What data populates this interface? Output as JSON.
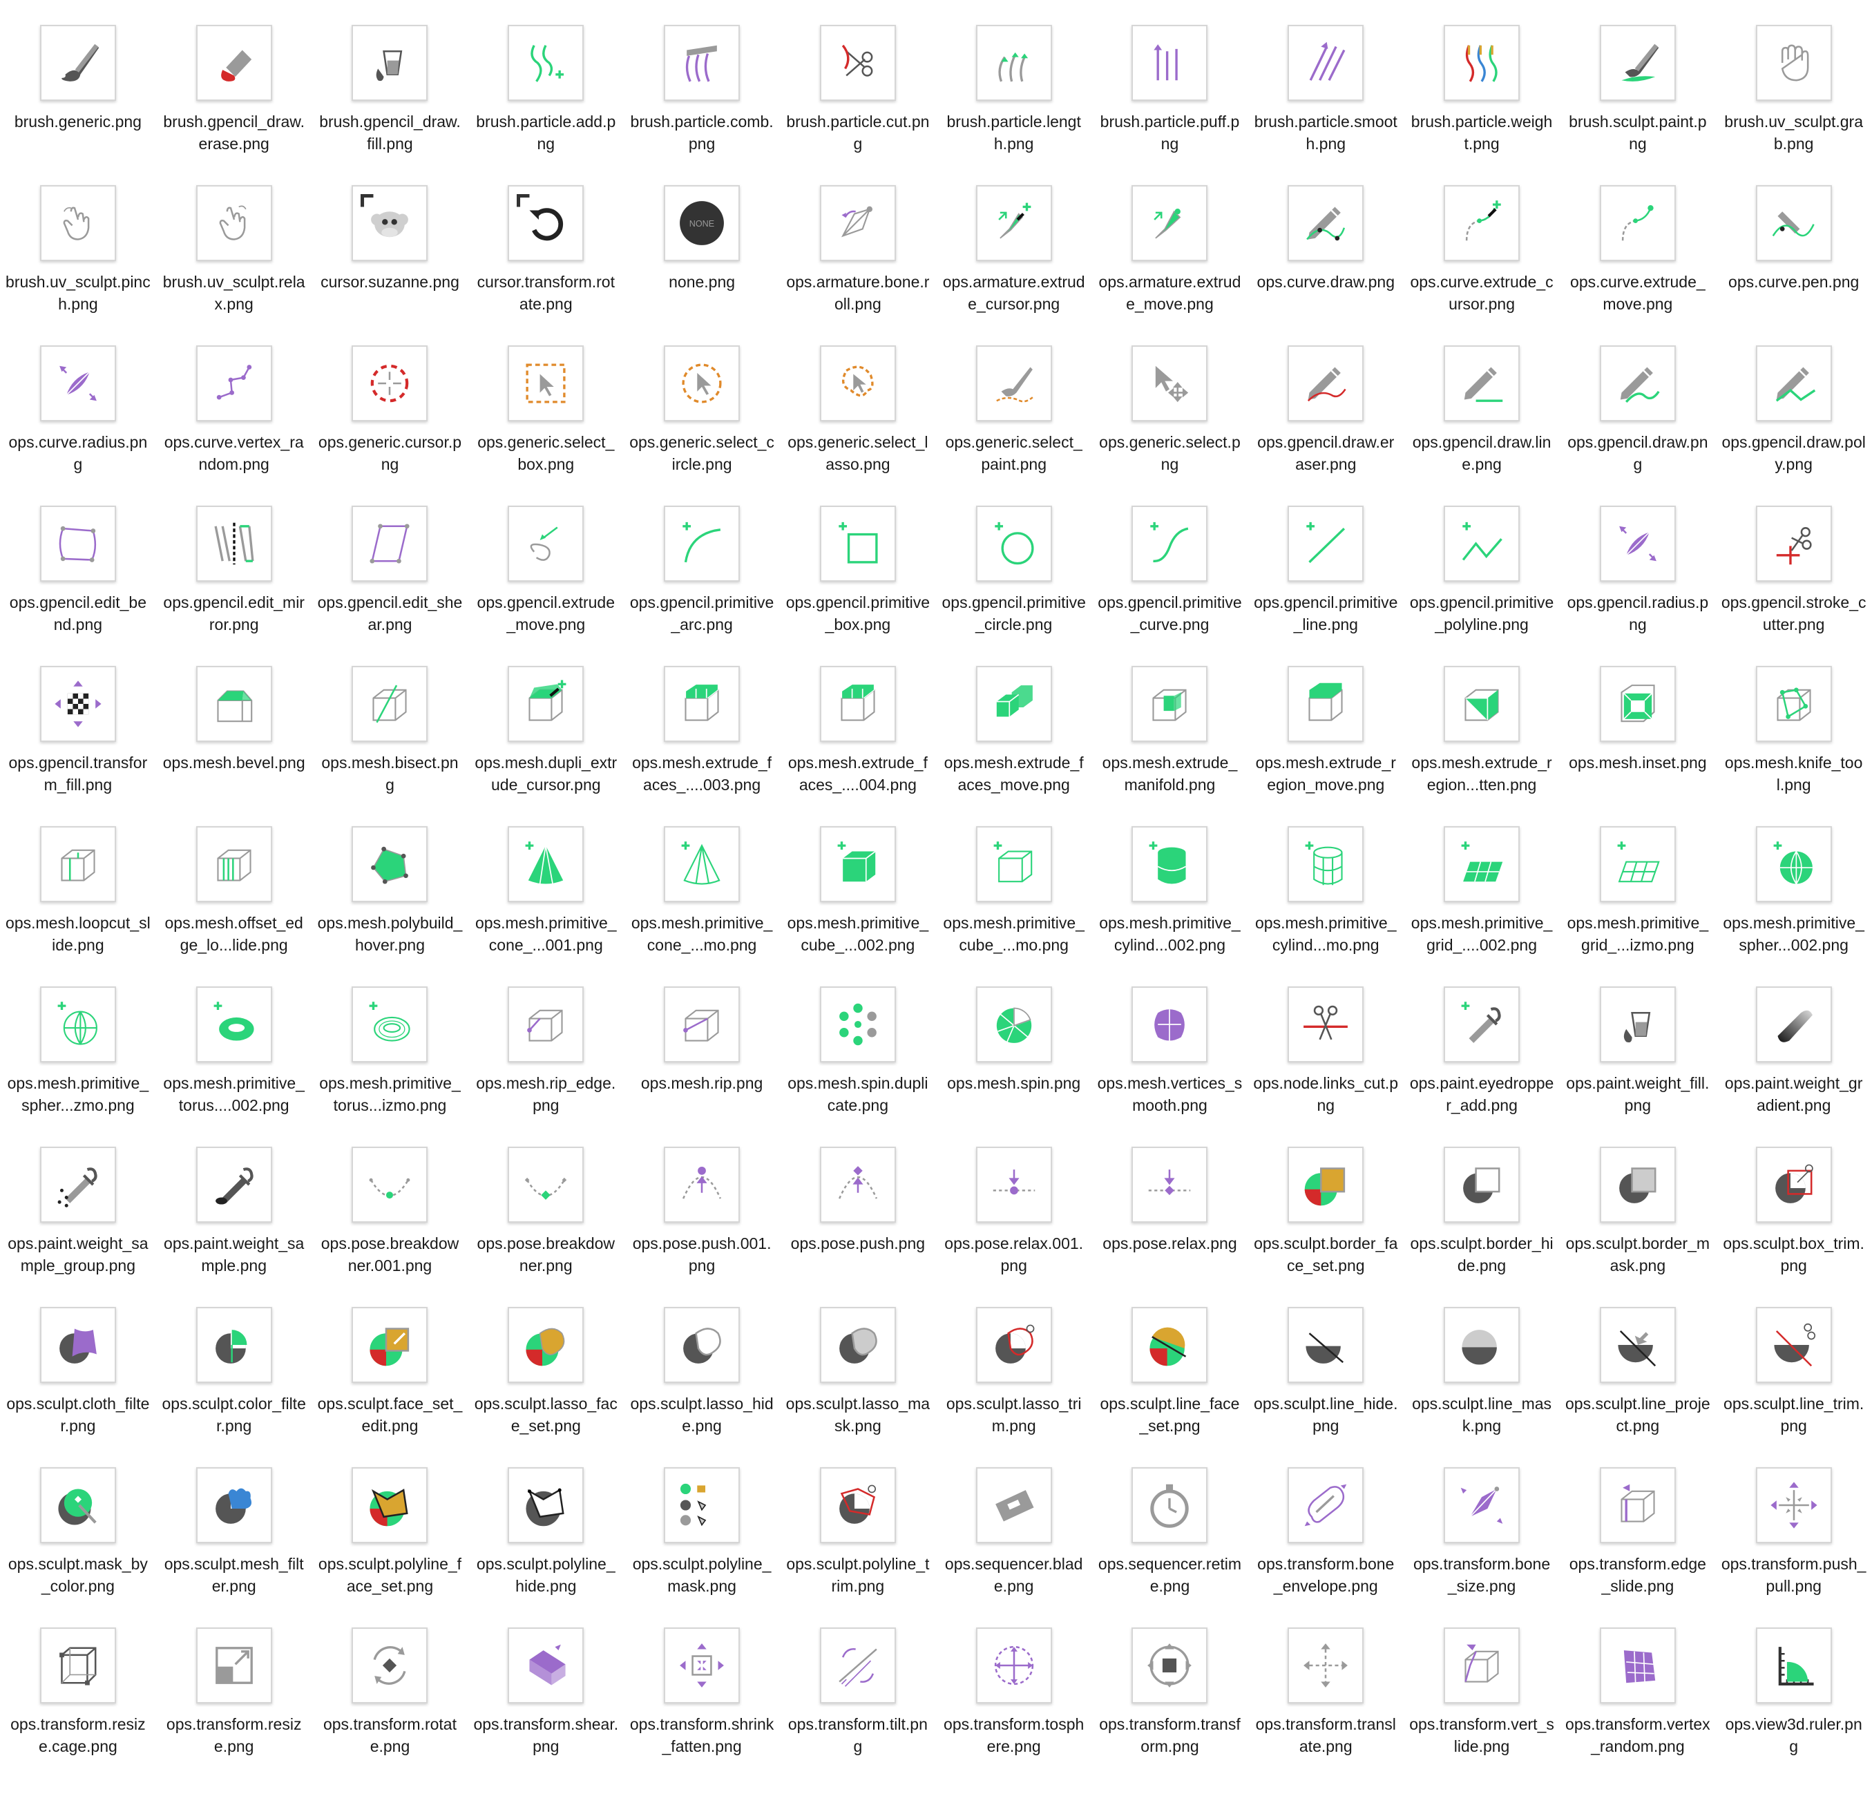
{
  "colors": {
    "green": "#2bd47a",
    "purple": "#9b6bcb",
    "gray": "#9a9a9a",
    "dark": "#555555",
    "red": "#d42a2a",
    "orange": "#e08a2b",
    "gold": "#d9a530",
    "blue": "#3a86d4"
  },
  "files": [
    {
      "name": "brush.generic.png",
      "icon": "brush-icon"
    },
    {
      "name": "brush.gpencil_draw.erase.png",
      "icon": "eraser-icon"
    },
    {
      "name": "brush.gpencil_draw.fill.png",
      "icon": "fill-bucket-icon"
    },
    {
      "name": "brush.particle.add.png",
      "icon": "particle-add-icon"
    },
    {
      "name": "brush.particle.comb.png",
      "icon": "comb-icon"
    },
    {
      "name": "brush.particle.cut.png",
      "icon": "scissors-icon"
    },
    {
      "name": "brush.particle.length.png",
      "icon": "particle-length-icon"
    },
    {
      "name": "brush.particle.puff.png",
      "icon": "particle-puff-icon"
    },
    {
      "name": "brush.particle.smooth.png",
      "icon": "particle-smooth-icon"
    },
    {
      "name": "brush.particle.weight.png",
      "icon": "particle-weight-icon"
    },
    {
      "name": "brush.sculpt.paint.png",
      "icon": "sculpt-paint-icon"
    },
    {
      "name": "brush.uv_sculpt.grab.png",
      "icon": "grab-hand-icon"
    },
    {
      "name": "brush.uv_sculpt.pinch.png",
      "icon": "pinch-hand-icon"
    },
    {
      "name": "brush.uv_sculpt.relax.png",
      "icon": "relax-hand-icon"
    },
    {
      "name": "cursor.suzanne.png",
      "icon": "monkey-icon"
    },
    {
      "name": "cursor.transform.rotate.png",
      "icon": "rotate-icon"
    },
    {
      "name": "none.png",
      "icon": "none-icon"
    },
    {
      "name": "ops.armature.bone.roll.png",
      "icon": "bone-roll-icon"
    },
    {
      "name": "ops.armature.extrude_cursor.png",
      "icon": "bone-extrude-cursor-icon"
    },
    {
      "name": "ops.armature.extrude_move.png",
      "icon": "bone-extrude-move-icon"
    },
    {
      "name": "ops.curve.draw.png",
      "icon": "curve-draw-icon"
    },
    {
      "name": "ops.curve.extrude_cursor.png",
      "icon": "curve-extrude-cursor-icon"
    },
    {
      "name": "ops.curve.extrude_move.png",
      "icon": "curve-extrude-move-icon"
    },
    {
      "name": "ops.curve.pen.png",
      "icon": "pen-icon"
    },
    {
      "name": "ops.curve.radius.png",
      "icon": "radius-icon"
    },
    {
      "name": "ops.curve.vertex_random.png",
      "icon": "vertex-random-icon"
    },
    {
      "name": "ops.generic.cursor.png",
      "icon": "crosshair-icon"
    },
    {
      "name": "ops.generic.select_box.png",
      "icon": "select-box-icon"
    },
    {
      "name": "ops.generic.select_circle.png",
      "icon": "select-circle-icon"
    },
    {
      "name": "ops.generic.select_lasso.png",
      "icon": "select-lasso-icon"
    },
    {
      "name": "ops.generic.select_paint.png",
      "icon": "select-paint-icon"
    },
    {
      "name": "ops.generic.select.png",
      "icon": "select-arrow-icon"
    },
    {
      "name": "ops.gpencil.draw.eraser.png",
      "icon": "pencil-eraser-icon"
    },
    {
      "name": "ops.gpencil.draw.line.png",
      "icon": "pencil-line-icon"
    },
    {
      "name": "ops.gpencil.draw.png",
      "icon": "pencil-draw-icon"
    },
    {
      "name": "ops.gpencil.draw.poly.png",
      "icon": "pencil-poly-icon"
    },
    {
      "name": "ops.gpencil.edit_bend.png",
      "icon": "bend-icon"
    },
    {
      "name": "ops.gpencil.edit_mirror.png",
      "icon": "mirror-icon"
    },
    {
      "name": "ops.gpencil.edit_shear.png",
      "icon": "shear-icon"
    },
    {
      "name": "ops.gpencil.extrude_move.png",
      "icon": "stroke-extrude-icon"
    },
    {
      "name": "ops.gpencil.primitive_arc.png",
      "icon": "primitive-arc-icon"
    },
    {
      "name": "ops.gpencil.primitive_box.png",
      "icon": "primitive-box-icon"
    },
    {
      "name": "ops.gpencil.primitive_circle.png",
      "icon": "primitive-circle-icon"
    },
    {
      "name": "ops.gpencil.primitive_curve.png",
      "icon": "primitive-curve-icon"
    },
    {
      "name": "ops.gpencil.primitive_line.png",
      "icon": "primitive-line-icon"
    },
    {
      "name": "ops.gpencil.primitive_polyline.png",
      "icon": "primitive-polyline-icon"
    },
    {
      "name": "ops.gpencil.radius.png",
      "icon": "radius-icon"
    },
    {
      "name": "ops.gpencil.stroke_cutter.png",
      "icon": "stroke-cutter-icon"
    },
    {
      "name": "ops.gpencil.transform_fill.png",
      "icon": "transform-fill-icon"
    },
    {
      "name": "ops.mesh.bevel.png",
      "icon": "bevel-icon"
    },
    {
      "name": "ops.mesh.bisect.png",
      "icon": "bisect-icon"
    },
    {
      "name": "ops.mesh.dupli_extrude_cursor.png",
      "icon": "dupli-extrude-icon"
    },
    {
      "name": "ops.mesh.extrude_faces_....003.png",
      "icon": "extrude-faces-icon"
    },
    {
      "name": "ops.mesh.extrude_faces_....004.png",
      "icon": "extrude-faces-icon"
    },
    {
      "name": "ops.mesh.extrude_faces_move.png",
      "icon": "extrude-faces-move-icon"
    },
    {
      "name": "ops.mesh.extrude_manifold.png",
      "icon": "extrude-manifold-icon"
    },
    {
      "name": "ops.mesh.extrude_region_move.png",
      "icon": "extrude-region-icon"
    },
    {
      "name": "ops.mesh.extrude_region...tten.png",
      "icon": "extrude-region-shrink-icon"
    },
    {
      "name": "ops.mesh.inset.png",
      "icon": "inset-icon"
    },
    {
      "name": "ops.mesh.knife_tool.png",
      "icon": "knife-icon"
    },
    {
      "name": "ops.mesh.loopcut_slide.png",
      "icon": "loopcut-icon"
    },
    {
      "name": "ops.mesh.offset_edge_lo...lide.png",
      "icon": "offset-edge-icon"
    },
    {
      "name": "ops.mesh.polybuild_hover.png",
      "icon": "polybuild-icon"
    },
    {
      "name": "ops.mesh.primitive_cone_...001.png",
      "icon": "cone-filled-icon"
    },
    {
      "name": "ops.mesh.primitive_cone_...mo.png",
      "icon": "cone-outline-icon"
    },
    {
      "name": "ops.mesh.primitive_cube_...002.png",
      "icon": "cube-filled-icon"
    },
    {
      "name": "ops.mesh.primitive_cube_...mo.png",
      "icon": "cube-outline-icon"
    },
    {
      "name": "ops.mesh.primitive_cylind...002.png",
      "icon": "cylinder-filled-icon"
    },
    {
      "name": "ops.mesh.primitive_cylind...mo.png",
      "icon": "cylinder-outline-icon"
    },
    {
      "name": "ops.mesh.primitive_grid_....002.png",
      "icon": "grid-filled-icon"
    },
    {
      "name": "ops.mesh.primitive_grid_...izmo.png",
      "icon": "grid-outline-icon"
    },
    {
      "name": "ops.mesh.primitive_spher...002.png",
      "icon": "sphere-filled-icon"
    },
    {
      "name": "ops.mesh.primitive_spher...zmo.png",
      "icon": "sphere-outline-icon"
    },
    {
      "name": "ops.mesh.primitive_torus....002.png",
      "icon": "torus-filled-icon"
    },
    {
      "name": "ops.mesh.primitive_torus...izmo.png",
      "icon": "torus-outline-icon"
    },
    {
      "name": "ops.mesh.rip_edge.png",
      "icon": "rip-edge-icon"
    },
    {
      "name": "ops.mesh.rip.png",
      "icon": "rip-icon"
    },
    {
      "name": "ops.mesh.spin.duplicate.png",
      "icon": "spin-duplicate-icon"
    },
    {
      "name": "ops.mesh.spin.png",
      "icon": "spin-icon"
    },
    {
      "name": "ops.mesh.vertices_smooth.png",
      "icon": "vertices-smooth-icon"
    },
    {
      "name": "ops.node.links_cut.png",
      "icon": "links-cut-icon"
    },
    {
      "name": "ops.paint.eyedropper_add.png",
      "icon": "eyedropper-add-icon"
    },
    {
      "name": "ops.paint.weight_fill.png",
      "icon": "weight-fill-icon"
    },
    {
      "name": "ops.paint.weight_gradient.png",
      "icon": "weight-gradient-icon"
    },
    {
      "name": "ops.paint.weight_sample_group.png",
      "icon": "eyedropper-group-icon"
    },
    {
      "name": "ops.paint.weight_sample.png",
      "icon": "eyedropper-icon"
    },
    {
      "name": "ops.pose.breakdowner.001.png",
      "icon": "breakdown-dot-icon"
    },
    {
      "name": "ops.pose.breakdowner.png",
      "icon": "breakdown-diamond-icon"
    },
    {
      "name": "ops.pose.push.001.png",
      "icon": "push-dot-icon"
    },
    {
      "name": "ops.pose.push.png",
      "icon": "push-diamond-icon"
    },
    {
      "name": "ops.pose.relax.001.png",
      "icon": "relax-dot-icon"
    },
    {
      "name": "ops.pose.relax.png",
      "icon": "relax-diamond-icon"
    },
    {
      "name": "ops.sculpt.border_face_set.png",
      "icon": "border-face-set-icon"
    },
    {
      "name": "ops.sculpt.border_hide.png",
      "icon": "border-hide-icon"
    },
    {
      "name": "ops.sculpt.border_mask.png",
      "icon": "border-mask-icon"
    },
    {
      "name": "ops.sculpt.box_trim.png",
      "icon": "box-trim-icon"
    },
    {
      "name": "ops.sculpt.cloth_filter.png",
      "icon": "cloth-filter-icon"
    },
    {
      "name": "ops.sculpt.color_filter.png",
      "icon": "color-filter-icon"
    },
    {
      "name": "ops.sculpt.face_set_edit.png",
      "icon": "face-set-edit-icon"
    },
    {
      "name": "ops.sculpt.lasso_face_set.png",
      "icon": "lasso-face-set-icon"
    },
    {
      "name": "ops.sculpt.lasso_hide.png",
      "icon": "lasso-hide-icon"
    },
    {
      "name": "ops.sculpt.lasso_mask.png",
      "icon": "lasso-mask-icon"
    },
    {
      "name": "ops.sculpt.lasso_trim.png",
      "icon": "lasso-trim-icon"
    },
    {
      "name": "ops.sculpt.line_face_set.png",
      "icon": "line-face-set-icon"
    },
    {
      "name": "ops.sculpt.line_hide.png",
      "icon": "line-hide-icon"
    },
    {
      "name": "ops.sculpt.line_mask.png",
      "icon": "line-mask-icon"
    },
    {
      "name": "ops.sculpt.line_project.png",
      "icon": "line-project-icon"
    },
    {
      "name": "ops.sculpt.line_trim.png",
      "icon": "line-trim-icon"
    },
    {
      "name": "ops.sculpt.mask_by_color.png",
      "icon": "mask-by-color-icon"
    },
    {
      "name": "ops.sculpt.mesh_filter.png",
      "icon": "mesh-filter-icon"
    },
    {
      "name": "ops.sculpt.polyline_face_set.png",
      "icon": "polyline-face-set-icon"
    },
    {
      "name": "ops.sculpt.polyline_hide.png",
      "icon": "polyline-hide-icon"
    },
    {
      "name": "ops.sculpt.polyline_mask.png",
      "icon": "polyline-mask-icon"
    },
    {
      "name": "ops.sculpt.polyline_trim.png",
      "icon": "polyline-trim-icon"
    },
    {
      "name": "ops.sequencer.blade.png",
      "icon": "blade-icon"
    },
    {
      "name": "ops.sequencer.retime.png",
      "icon": "stopwatch-icon"
    },
    {
      "name": "ops.transform.bone_envelope.png",
      "icon": "bone-envelope-icon"
    },
    {
      "name": "ops.transform.bone_size.png",
      "icon": "bone-size-icon"
    },
    {
      "name": "ops.transform.edge_slide.png",
      "icon": "edge-slide-icon"
    },
    {
      "name": "ops.transform.push_pull.png",
      "icon": "push-pull-icon"
    },
    {
      "name": "ops.transform.resize.cage.png",
      "icon": "resize-cage-icon"
    },
    {
      "name": "ops.transform.resize.png",
      "icon": "resize-icon"
    },
    {
      "name": "ops.transform.rotate.png",
      "icon": "transform-rotate-icon"
    },
    {
      "name": "ops.transform.shear.png",
      "icon": "transform-shear-icon"
    },
    {
      "name": "ops.transform.shrink_fatten.png",
      "icon": "shrink-fatten-icon"
    },
    {
      "name": "ops.transform.tilt.png",
      "icon": "tilt-icon"
    },
    {
      "name": "ops.transform.tosphere.png",
      "icon": "tosphere-icon"
    },
    {
      "name": "ops.transform.transform.png",
      "icon": "transform-icon"
    },
    {
      "name": "ops.transform.translate.png",
      "icon": "translate-icon"
    },
    {
      "name": "ops.transform.vert_slide.png",
      "icon": "vert-slide-icon"
    },
    {
      "name": "ops.transform.vertex_random.png",
      "icon": "vertex-random-transform-icon"
    },
    {
      "name": "ops.view3d.ruler.png",
      "icon": "ruler-icon"
    }
  ]
}
